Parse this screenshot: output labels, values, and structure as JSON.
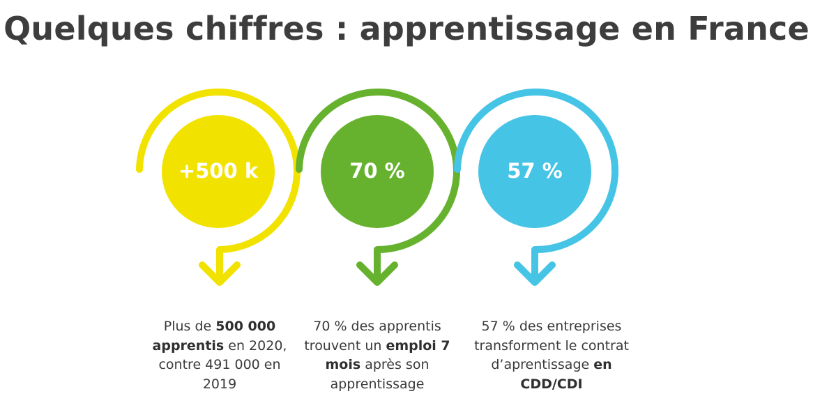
{
  "title": "Quelques chiffres : apprentissage en France",
  "colors": {
    "yellow": "#F2E200",
    "green": "#66B22E",
    "blue": "#45C4E6",
    "title": "#3D3D3D"
  },
  "items": [
    {
      "value": "+500 k",
      "color": "yellow",
      "caption": {
        "p1": "Plus de ",
        "b1": "500 000 apprentis",
        "p2": " en 2020, contre 491 000 en 2019",
        "b2": "",
        "p3": ""
      }
    },
    {
      "value": "70 %",
      "color": "green",
      "caption": {
        "p1": "70 % des apprentis trouvent un ",
        "b1": "emploi 7 mois",
        "p2": " après son apprentissage",
        "b2": "",
        "p3": ""
      }
    },
    {
      "value": "57 %",
      "color": "blue",
      "caption": {
        "p1": "57 % des entreprises transforment le contrat d’aprentissage ",
        "b1": "en CDD/CDI",
        "p2": "",
        "b2": "",
        "p3": ""
      }
    }
  ]
}
